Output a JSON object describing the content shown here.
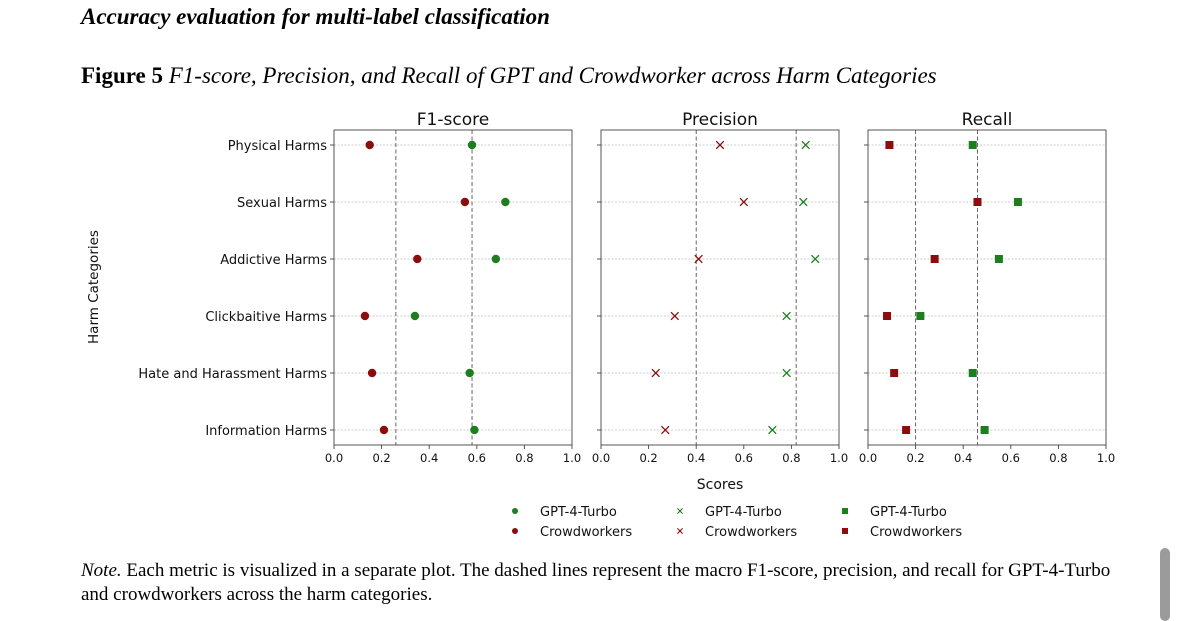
{
  "page": {
    "section_heading": "Accuracy evaluation for multi-label classification",
    "figure_label": "Figure 5",
    "figure_title": "F1-score, Precision, and Recall of GPT and Crowdworker across Harm Categories",
    "note_label": "Note.",
    "note_text": "Each metric is visualized in a separate plot. The dashed lines represent the macro F1-score, precision, and recall for GPT-4-Turbo and crowdworkers across the harm categories."
  },
  "colors": {
    "gpt": "#1e7d1e",
    "crowd": "#8b0d0d",
    "grid": "#bdbdbd",
    "axis": "#444444",
    "macro_line": "#555555"
  },
  "legend_position": "bottom",
  "chart_data": [
    {
      "type": "scatter",
      "title": "F1-score",
      "marker": "circle",
      "xlabel": "Scores",
      "ylabel": "Harm Categories",
      "xlim": [
        0.0,
        1.0
      ],
      "xticks": [
        "0.0",
        "0.2",
        "0.4",
        "0.6",
        "0.8",
        "1.0"
      ],
      "categories": [
        "Physical Harms",
        "Sexual Harms",
        "Addictive Harms",
        "Clickbaitive Harms",
        "Hate and Harassment Harms",
        "Information Harms"
      ],
      "series": [
        {
          "name": "GPT-4-Turbo",
          "values": [
            0.58,
            0.72,
            0.68,
            0.34,
            0.57,
            0.59
          ],
          "macro": 0.58
        },
        {
          "name": "Crowdworkers",
          "values": [
            0.15,
            0.55,
            0.35,
            0.13,
            0.16,
            0.21
          ],
          "macro": 0.26
        }
      ],
      "grid": true
    },
    {
      "type": "scatter",
      "title": "Precision",
      "marker": "x",
      "xlim": [
        0.0,
        1.0
      ],
      "xticks": [
        "0.0",
        "0.2",
        "0.4",
        "0.6",
        "0.8",
        "1.0"
      ],
      "categories": [
        "Physical Harms",
        "Sexual Harms",
        "Addictive Harms",
        "Clickbaitive Harms",
        "Hate and Harassment Harms",
        "Information Harms"
      ],
      "series": [
        {
          "name": "GPT-4-Turbo",
          "values": [
            0.86,
            0.85,
            0.9,
            0.78,
            0.78,
            0.72
          ],
          "macro": 0.82
        },
        {
          "name": "Crowdworkers",
          "values": [
            0.5,
            0.6,
            0.41,
            0.31,
            0.23,
            0.27
          ],
          "macro": 0.4
        }
      ],
      "grid": true
    },
    {
      "type": "scatter",
      "title": "Recall",
      "marker": "square",
      "xlim": [
        0.0,
        1.0
      ],
      "xticks": [
        "0.0",
        "0.2",
        "0.4",
        "0.6",
        "0.8",
        "1.0"
      ],
      "categories": [
        "Physical Harms",
        "Sexual Harms",
        "Addictive Harms",
        "Clickbaitive Harms",
        "Hate and Harassment Harms",
        "Information Harms"
      ],
      "series": [
        {
          "name": "GPT-4-Turbo",
          "values": [
            0.44,
            0.63,
            0.55,
            0.22,
            0.44,
            0.49
          ],
          "macro": 0.46
        },
        {
          "name": "Crowdworkers",
          "values": [
            0.09,
            0.46,
            0.28,
            0.08,
            0.11,
            0.16
          ],
          "macro": 0.2
        }
      ],
      "grid": true
    }
  ]
}
